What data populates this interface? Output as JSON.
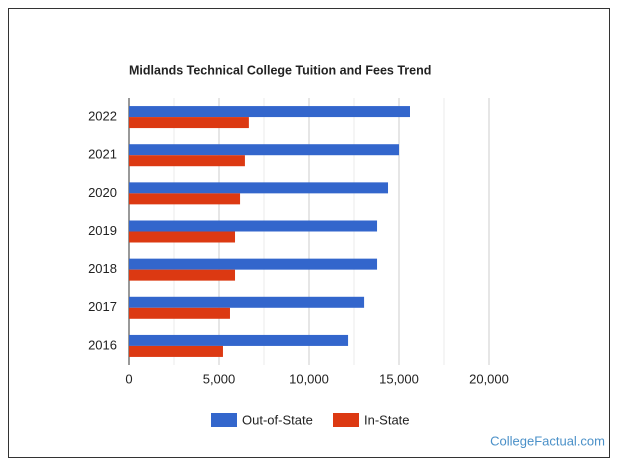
{
  "chart_data": {
    "type": "bar",
    "orientation": "horizontal",
    "title": "Midlands Technical College Tuition and Fees Trend",
    "categories": [
      "2022",
      "2021",
      "2020",
      "2019",
      "2018",
      "2017",
      "2016"
    ],
    "series": [
      {
        "name": "Out-of-State",
        "color": "#3366cc",
        "values": [
          15611,
          15000,
          14390,
          13780,
          13780,
          13060,
          12170
        ]
      },
      {
        "name": "In-State",
        "color": "#dc3912",
        "values": [
          6660,
          6440,
          6170,
          5890,
          5890,
          5610,
          5220
        ]
      }
    ],
    "xlim": [
      0,
      20000
    ],
    "xticks": [
      0,
      {
        "value": 5000,
        "label": "5,000"
      },
      {
        "value": 10000,
        "label": "10,000"
      },
      {
        "value": 15000,
        "label": "15,000"
      },
      {
        "value": 20000,
        "label": "20,000"
      }
    ],
    "x_minor_gridlines": [
      2500,
      7500,
      12500,
      17500
    ],
    "grid": true,
    "legend": "bottom",
    "watermark": "CollegeFactual.com"
  }
}
